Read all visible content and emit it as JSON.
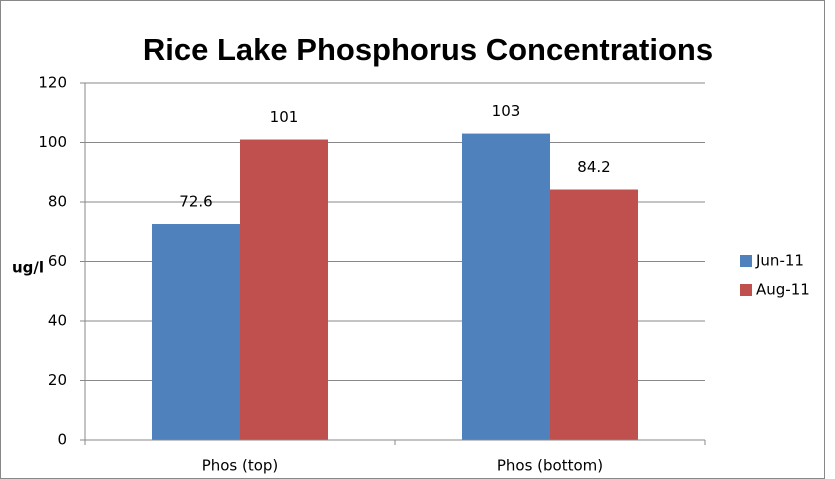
{
  "chart_data": {
    "type": "bar",
    "title": "Rice Lake Phosphorus Concentrations",
    "y_label": "ug/l",
    "categories": [
      "Phos (top)",
      "Phos (bottom)"
    ],
    "series": [
      {
        "name": "Jun-11",
        "color": "#4f81bd",
        "values": [
          72.6,
          103
        ]
      },
      {
        "name": "Aug-11",
        "color": "#c0504d",
        "values": [
          101,
          84.2
        ]
      }
    ],
    "ylim": [
      0,
      120
    ],
    "yticks": [
      0,
      20,
      40,
      60,
      80,
      100,
      120
    ],
    "grid": true,
    "legend": "right",
    "data_labels": true
  }
}
